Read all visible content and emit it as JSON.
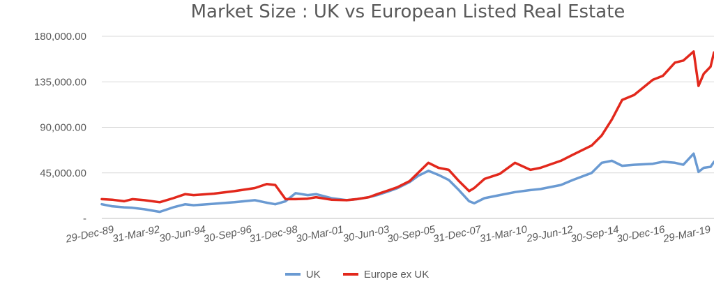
{
  "chart_data": {
    "type": "line",
    "title": "Market Size :  UK vs European Listed Real Estate",
    "y_tick_labels": [
      "-",
      "45,000.00",
      "90,000.00",
      "135,000.00",
      "180,000.00"
    ],
    "y_tick_values": [
      0,
      45000,
      90000,
      135000,
      180000
    ],
    "ylim": [
      0,
      180000
    ],
    "x_tick_labels": [
      "29-Dec-89",
      "31-Mar-92",
      "30-Jun-94",
      "30-Sep-96",
      "31-Dec-98",
      "30-Mar-01",
      "30-Jun-03",
      "30-Sep-05",
      "31-Dec-07",
      "31-Mar-10",
      "29-Jun-12",
      "30-Sep-14",
      "30-Dec-16",
      "29-Mar-19"
    ],
    "x_tick_dates": [
      "1989-12-29",
      "1992-03-31",
      "1994-06-30",
      "1996-09-30",
      "1998-12-31",
      "2001-03-30",
      "2003-06-30",
      "2005-09-30",
      "2007-12-31",
      "2010-03-31",
      "2012-06-29",
      "2014-09-30",
      "2016-12-30",
      "2019-03-29"
    ],
    "xlim": [
      "1989-12-29",
      "2019-12-31"
    ],
    "grid": "horizontal",
    "legend": "bottom",
    "series": [
      {
        "name": "UK",
        "color": "#6a9ad2",
        "points": [
          [
            "1989-12-29",
            14000
          ],
          [
            "1990-06-30",
            12000
          ],
          [
            "1991-01-31",
            11000
          ],
          [
            "1991-06-30",
            10500
          ],
          [
            "1992-01-31",
            9000
          ],
          [
            "1992-10-31",
            6500
          ],
          [
            "1993-06-30",
            11000
          ],
          [
            "1994-01-31",
            14000
          ],
          [
            "1994-06-30",
            13000
          ],
          [
            "1995-06-30",
            14500
          ],
          [
            "1996-06-30",
            16000
          ],
          [
            "1997-06-30",
            18000
          ],
          [
            "1998-01-31",
            15500
          ],
          [
            "1998-06-30",
            14000
          ],
          [
            "1998-12-31",
            17000
          ],
          [
            "1999-06-30",
            25000
          ],
          [
            "2000-01-31",
            23000
          ],
          [
            "2000-06-30",
            24000
          ],
          [
            "2001-03-30",
            20000
          ],
          [
            "2001-12-31",
            18000
          ],
          [
            "2002-06-30",
            19000
          ],
          [
            "2003-01-31",
            21000
          ],
          [
            "2003-06-30",
            23000
          ],
          [
            "2004-01-31",
            27000
          ],
          [
            "2004-06-30",
            30000
          ],
          [
            "2005-01-31",
            36000
          ],
          [
            "2005-06-30",
            42000
          ],
          [
            "2005-12-31",
            47000
          ],
          [
            "2006-06-30",
            43000
          ],
          [
            "2006-12-31",
            38000
          ],
          [
            "2007-06-30",
            28000
          ],
          [
            "2007-12-31",
            17000
          ],
          [
            "2008-03-31",
            15000
          ],
          [
            "2008-09-30",
            20000
          ],
          [
            "2009-06-30",
            23000
          ],
          [
            "2010-03-31",
            26000
          ],
          [
            "2010-12-31",
            28000
          ],
          [
            "2011-06-30",
            29000
          ],
          [
            "2012-06-29",
            33000
          ],
          [
            "2013-01-31",
            38000
          ],
          [
            "2013-12-31",
            45000
          ],
          [
            "2014-06-30",
            55000
          ],
          [
            "2014-12-31",
            57000
          ],
          [
            "2015-06-30",
            52000
          ],
          [
            "2016-01-31",
            53000
          ],
          [
            "2016-12-30",
            54000
          ],
          [
            "2017-06-30",
            56000
          ],
          [
            "2018-01-31",
            55000
          ],
          [
            "2018-06-30",
            53000
          ],
          [
            "2018-12-31",
            64000
          ],
          [
            "2019-03-29",
            46000
          ],
          [
            "2019-06-30",
            50000
          ],
          [
            "2019-10-31",
            51000
          ],
          [
            "2019-12-31",
            56000
          ]
        ]
      },
      {
        "name": "Europe ex UK",
        "color": "#e2281c",
        "points": [
          [
            "1989-12-29",
            19000
          ],
          [
            "1990-06-30",
            18500
          ],
          [
            "1991-01-31",
            17000
          ],
          [
            "1991-06-30",
            19000
          ],
          [
            "1992-01-31",
            18000
          ],
          [
            "1992-10-31",
            16000
          ],
          [
            "1993-06-30",
            20000
          ],
          [
            "1994-01-31",
            24000
          ],
          [
            "1994-06-30",
            23000
          ],
          [
            "1995-06-30",
            24500
          ],
          [
            "1996-06-30",
            27000
          ],
          [
            "1997-06-30",
            30000
          ],
          [
            "1998-01-31",
            34000
          ],
          [
            "1998-06-30",
            33000
          ],
          [
            "1998-12-31",
            19000
          ],
          [
            "1999-06-30",
            19000
          ],
          [
            "2000-01-31",
            19500
          ],
          [
            "2000-06-30",
            21000
          ],
          [
            "2001-03-30",
            18500
          ],
          [
            "2001-12-31",
            18000
          ],
          [
            "2002-06-30",
            19000
          ],
          [
            "2003-01-31",
            21000
          ],
          [
            "2003-06-30",
            24000
          ],
          [
            "2004-01-31",
            28000
          ],
          [
            "2004-06-30",
            31000
          ],
          [
            "2005-01-31",
            37000
          ],
          [
            "2005-06-30",
            45000
          ],
          [
            "2005-12-31",
            55000
          ],
          [
            "2006-06-30",
            50000
          ],
          [
            "2006-12-31",
            48000
          ],
          [
            "2007-06-30",
            37000
          ],
          [
            "2007-12-31",
            27000
          ],
          [
            "2008-03-31",
            30000
          ],
          [
            "2008-09-30",
            39000
          ],
          [
            "2009-06-30",
            44000
          ],
          [
            "2010-03-31",
            55000
          ],
          [
            "2010-12-31",
            48000
          ],
          [
            "2011-06-30",
            50000
          ],
          [
            "2012-06-29",
            57000
          ],
          [
            "2013-01-31",
            63000
          ],
          [
            "2013-12-31",
            72000
          ],
          [
            "2014-06-30",
            82000
          ],
          [
            "2014-12-31",
            98000
          ],
          [
            "2015-06-30",
            117000
          ],
          [
            "2016-01-31",
            122000
          ],
          [
            "2016-12-30",
            137000
          ],
          [
            "2017-06-30",
            141000
          ],
          [
            "2018-01-31",
            154000
          ],
          [
            "2018-06-30",
            156000
          ],
          [
            "2018-12-31",
            165000
          ],
          [
            "2019-03-29",
            131000
          ],
          [
            "2019-06-30",
            143000
          ],
          [
            "2019-10-31",
            150000
          ],
          [
            "2019-12-31",
            164000
          ]
        ]
      }
    ]
  },
  "legend_items": [
    {
      "label": "UK",
      "color": "#6a9ad2"
    },
    {
      "label": "Europe ex UK",
      "color": "#e2281c"
    }
  ]
}
